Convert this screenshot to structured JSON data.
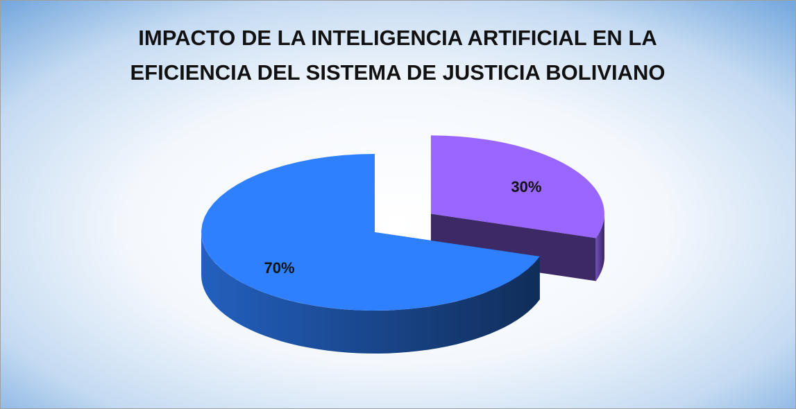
{
  "chart_data": {
    "type": "pie3d",
    "title": [
      "IMPACTO DE LA INTELIGENCIA ARTIFICIAL EN LA",
      "EFICIENCIA DEL SISTEMA DE JUSTICIA BOLIVIANO"
    ],
    "values": [
      30,
      70
    ],
    "value_labels": [
      "30%",
      "70%"
    ],
    "colors": [
      "#9966ff",
      "#2f80ff"
    ],
    "explode": [
      true,
      false
    ]
  }
}
